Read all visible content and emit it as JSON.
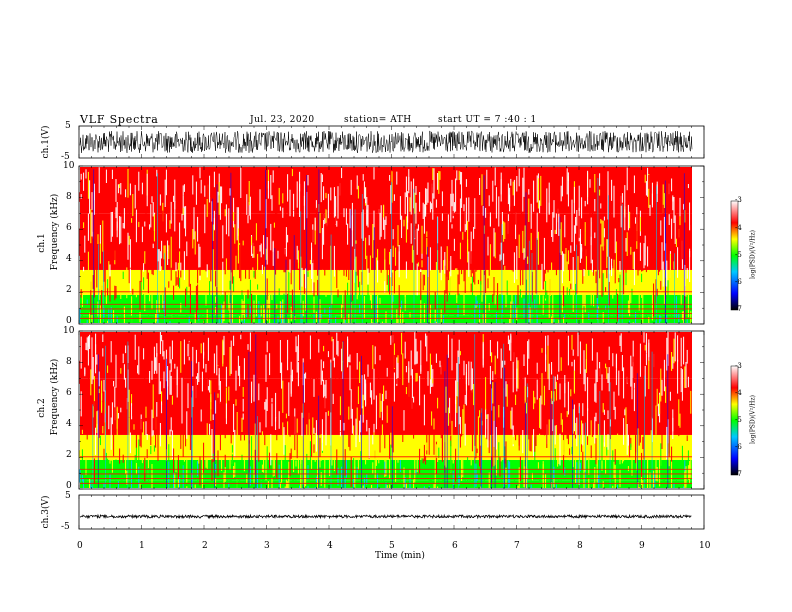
{
  "header": {
    "title": "VLF  Spectra",
    "date": "Jul.  23,  2020",
    "station": "station= ATH",
    "start": "start  UT  =    7  :40 : 1"
  },
  "panels": {
    "ch1_wave_label": "ch.1(V)",
    "ch1_spec_label_a": "ch.1",
    "ch1_spec_label_b": "Frequency  (kHz)",
    "ch2_spec_label_a": "ch.2",
    "ch2_spec_label_b": "Frequency  (kHz)",
    "ch3_wave_label": "ch.3(V)",
    "colorbar_label": "log(PSD)(V²/Hz)"
  },
  "colors": {
    "scale": [
      "#000000",
      "#0000ff",
      "#00c8ff",
      "#00ff00",
      "#ffff00",
      "#ff0000",
      "#ffffff"
    ]
  },
  "chart_data": [
    {
      "type": "line",
      "name": "ch.1 waveform",
      "ylabel": "ch.1(V)",
      "ylim": [
        -5,
        5
      ],
      "yticks": [
        "5",
        "-5"
      ],
      "xlim": [
        0,
        10
      ],
      "description_values": {
        "amplitude_range": [
          -4,
          4
        ]
      }
    },
    {
      "type": "heatmap",
      "ylabel": "Frequency  (kHz)",
      "channel": "ch.1",
      "ylim": [
        0,
        10
      ],
      "yticks": [
        "0",
        "2",
        "4",
        "6",
        "8",
        "10"
      ],
      "xlim": [
        0,
        9.8
      ],
      "colorbar": {
        "label": "log(PSD)(V²/Hz)",
        "range": [
          -7,
          -3
        ],
        "ticks": [
          "-3",
          "-4",
          "-5",
          "-6",
          "-7"
        ]
      },
      "bands_khz": [
        {
          "from": 0.0,
          "to": 0.5,
          "level": -5
        },
        {
          "from": 0.5,
          "to": 1.8,
          "level": -5.2
        },
        {
          "from": 1.8,
          "to": 3.4,
          "level": -4.5
        },
        {
          "from": 3.4,
          "to": 7.0,
          "level": -4.0
        },
        {
          "from": 7.0,
          "to": 10.0,
          "level": -3.5
        }
      ]
    },
    {
      "type": "heatmap",
      "ylabel": "Frequency  (kHz)",
      "channel": "ch.2",
      "ylim": [
        0,
        10
      ],
      "yticks": [
        "0",
        "2",
        "4",
        "6",
        "8",
        "10"
      ],
      "xlim": [
        0,
        9.8
      ],
      "colorbar": {
        "label": "log(PSD)(V²/Hz)",
        "range": [
          -7,
          -3
        ],
        "ticks": [
          "-3",
          "-4",
          "-5",
          "-6",
          "-7"
        ]
      },
      "bands_khz": [
        {
          "from": 0.0,
          "to": 0.5,
          "level": -5
        },
        {
          "from": 0.5,
          "to": 1.8,
          "level": -5.2
        },
        {
          "from": 1.8,
          "to": 3.4,
          "level": -4.5
        },
        {
          "from": 3.4,
          "to": 7.0,
          "level": -4.0
        },
        {
          "from": 7.0,
          "to": 10.0,
          "level": -3.5
        }
      ]
    },
    {
      "type": "line",
      "name": "ch.3 waveform",
      "ylabel": "ch.3(V)",
      "ylim": [
        -5,
        5
      ],
      "yticks": [
        "5",
        "-5"
      ],
      "xlim": [
        0,
        10
      ],
      "xlabel": "Time  (min)",
      "xticks": [
        "0",
        "1",
        "2",
        "3",
        "4",
        "5",
        "6",
        "7",
        "8",
        "9",
        "10"
      ],
      "description_values": {
        "level": -1.5,
        "amplitude_range": [
          -2,
          -1
        ]
      }
    }
  ]
}
